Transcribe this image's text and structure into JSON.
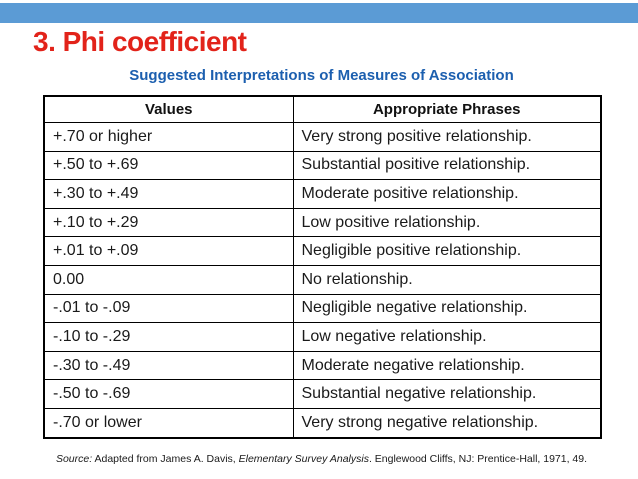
{
  "slide": {
    "title": "3. Phi coefficient",
    "subtitle": "Suggested Interpretations of Measures of Association"
  },
  "table": {
    "headers": [
      "Values",
      "Appropriate Phrases"
    ],
    "rows": [
      [
        "+.70 or higher",
        "Very strong positive relationship."
      ],
      [
        "+.50 to +.69",
        "Substantial positive relationship."
      ],
      [
        "+.30 to +.49",
        "Moderate positive relationship."
      ],
      [
        "+.10 to +.29",
        "Low positive relationship."
      ],
      [
        "+.01 to +.09",
        "Negligible positive relationship."
      ],
      [
        "0.00",
        "No relationship."
      ],
      [
        "-.01 to -.09",
        "Negligible negative relationship."
      ],
      [
        "-.10 to -.29",
        "Low negative relationship."
      ],
      [
        "-.30 to -.49",
        "Moderate negative relationship."
      ],
      [
        "-.50 to -.69",
        "Substantial negative relationship."
      ],
      [
        "-.70 or lower",
        "Very strong negative relationship."
      ]
    ]
  },
  "source": {
    "prefix": "Source:",
    "before_title": " Adapted from James A. Davis, ",
    "italic_title": "Elementary Survey Analysis",
    "after_title": ". Englewood Cliffs, NJ: Prentice-Hall, 1971, 49."
  },
  "colors": {
    "accent_bar": "#5B9BD5",
    "title_red": "#E2231A",
    "subtitle_blue": "#1C5FAF"
  }
}
